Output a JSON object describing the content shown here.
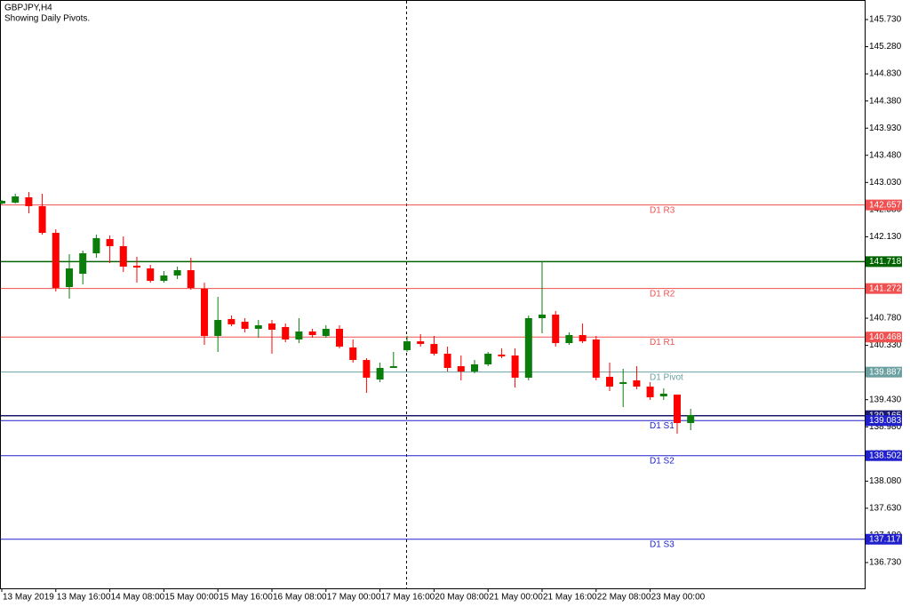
{
  "chart_data": {
    "type": "candlestick",
    "title": "GBPJPY,H4",
    "subtitle": "Showing Daily Pivots.",
    "categories": [
      "13 May 2019",
      null,
      null,
      null,
      "13 May 16:00",
      null,
      null,
      null,
      "14 May 08:00",
      null,
      null,
      null,
      "15 May 00:00",
      null,
      null,
      null,
      "15 May 16:00",
      null,
      null,
      null,
      "16 May 08:00",
      null,
      null,
      null,
      "17 May 00:00",
      null,
      null,
      null,
      "17 May 16:00",
      null,
      null,
      null,
      "20 May 08:00",
      null,
      null,
      null,
      "21 May 00:00",
      null,
      null,
      null,
      "21 May 16:00",
      null,
      null,
      null,
      "22 May 08:00",
      null,
      null,
      null,
      "23 May 00:00",
      null,
      null,
      null
    ],
    "open": [
      142.681,
      142.696,
      142.784,
      142.637,
      142.195,
      141.296,
      141.517,
      141.856,
      142.092,
      141.974,
      141.65,
      141.605,
      141.399,
      141.488,
      141.576,
      141.267,
      140.486,
      140.766,
      140.722,
      140.604,
      140.693,
      140.634,
      140.427,
      140.56,
      140.486,
      140.604,
      140.295,
      140.088,
      139.764,
      139.956,
      140.25,
      140.397,
      140.353,
      140.192,
      139.985,
      139.897,
      140.015,
      140.177,
      140.162,
      139.794,
      140.781,
      140.84,
      140.368,
      140.501,
      140.427,
      139.809,
      139.691,
      139.75,
      139.647,
      139.485,
      139.514,
      139.043
    ],
    "high": [
      142.74,
      142.843,
      142.872,
      142.843,
      142.254,
      141.841,
      141.9,
      142.165,
      142.151,
      142.136,
      141.797,
      141.664,
      141.561,
      141.635,
      141.782,
      141.369,
      141.134,
      140.825,
      140.781,
      140.751,
      140.751,
      140.693,
      140.781,
      140.604,
      140.663,
      140.663,
      140.427,
      140.118,
      140.044,
      140.221,
      140.486,
      140.516,
      140.486,
      140.309,
      140.162,
      140.088,
      140.221,
      140.28,
      140.28,
      140.825,
      141.723,
      140.899,
      140.545,
      140.693,
      140.486,
      140.044,
      139.941,
      139.985,
      139.72,
      139.617,
      139.514,
      139.278
    ],
    "low": [
      142.666,
      142.681,
      142.519,
      142.165,
      141.223,
      141.105,
      141.34,
      141.782,
      141.694,
      141.547,
      141.37,
      141.369,
      141.369,
      141.429,
      141.252,
      140.339,
      140.221,
      140.648,
      140.545,
      140.457,
      140.192,
      140.383,
      140.368,
      140.457,
      140.457,
      140.28,
      140.044,
      139.543,
      139.72,
      139.956,
      140.221,
      140.309,
      140.162,
      139.897,
      139.75,
      139.867,
      139.985,
      140.118,
      139.632,
      139.75,
      140.53,
      140.309,
      140.339,
      140.368,
      139.75,
      139.573,
      139.308,
      139.603,
      139.426,
      139.426,
      138.866,
      138.925
    ],
    "close": [
      142.725,
      142.799,
      142.637,
      142.195,
      141.282,
      141.605,
      141.856,
      142.107,
      141.974,
      141.635,
      141.62,
      141.399,
      141.488,
      141.576,
      141.282,
      140.486,
      140.751,
      140.678,
      140.604,
      140.663,
      140.589,
      140.427,
      140.56,
      140.501,
      140.604,
      140.309,
      140.088,
      139.794,
      139.956,
      139.985,
      140.397,
      140.353,
      140.192,
      139.956,
      139.897,
      140.015,
      140.192,
      140.147,
      139.794,
      140.781,
      140.84,
      140.368,
      140.501,
      140.397,
      139.794,
      139.647,
      139.72,
      139.647,
      139.47,
      139.529,
      139.043,
      139.175
    ],
    "up_color": "#0b7d0b",
    "down_color": "#ff0000",
    "ylim": [
      136.303,
      146.054
    ],
    "yticks": [
      {
        "value": 145.73,
        "label": "145.730"
      },
      {
        "value": 145.28,
        "label": "145.280"
      },
      {
        "value": 144.83,
        "label": "144.830"
      },
      {
        "value": 144.38,
        "label": "144.380"
      },
      {
        "value": 143.93,
        "label": "143.930"
      },
      {
        "value": 143.48,
        "label": "143.480"
      },
      {
        "value": 143.03,
        "label": "143.030"
      },
      {
        "value": 142.58,
        "label": "142.580"
      },
      {
        "value": 142.13,
        "label": "142.130"
      },
      {
        "value": 141.68,
        "label": "141.680"
      },
      {
        "value": 141.23,
        "label": "141.230"
      },
      {
        "value": 140.78,
        "label": "140.780"
      },
      {
        "value": 140.33,
        "label": "140.330"
      },
      {
        "value": 139.88,
        "label": "139.880"
      },
      {
        "value": 139.43,
        "label": "139.430"
      },
      {
        "value": 138.98,
        "label": "138.980"
      },
      {
        "value": 138.53,
        "label": "138.530"
      },
      {
        "value": 138.08,
        "label": "138.080"
      },
      {
        "value": 137.63,
        "label": "137.630"
      },
      {
        "value": 137.18,
        "label": "137.180"
      },
      {
        "value": 136.73,
        "label": "136.730"
      }
    ],
    "lines": [
      {
        "name": "D1 R3",
        "value": 142.657,
        "color": "#f05050"
      },
      {
        "value": 141.718,
        "color": "#006400"
      },
      {
        "name": "D1 R2",
        "value": 141.272,
        "color": "#f05050"
      },
      {
        "name": "D1 R1",
        "value": 140.468,
        "color": "#f05050"
      },
      {
        "name": "D1 Pivot",
        "value": 139.887,
        "color": "#6aa0a0"
      },
      {
        "value": 139.165,
        "color": "#1a1a6e"
      },
      {
        "name": "D1 S1",
        "value": 139.083,
        "color": "#2020cc"
      },
      {
        "name": "D1 S2",
        "value": 138.502,
        "color": "#2020cc"
      },
      {
        "name": "D1 S3",
        "value": 137.117,
        "color": "#2020cc"
      }
    ]
  }
}
